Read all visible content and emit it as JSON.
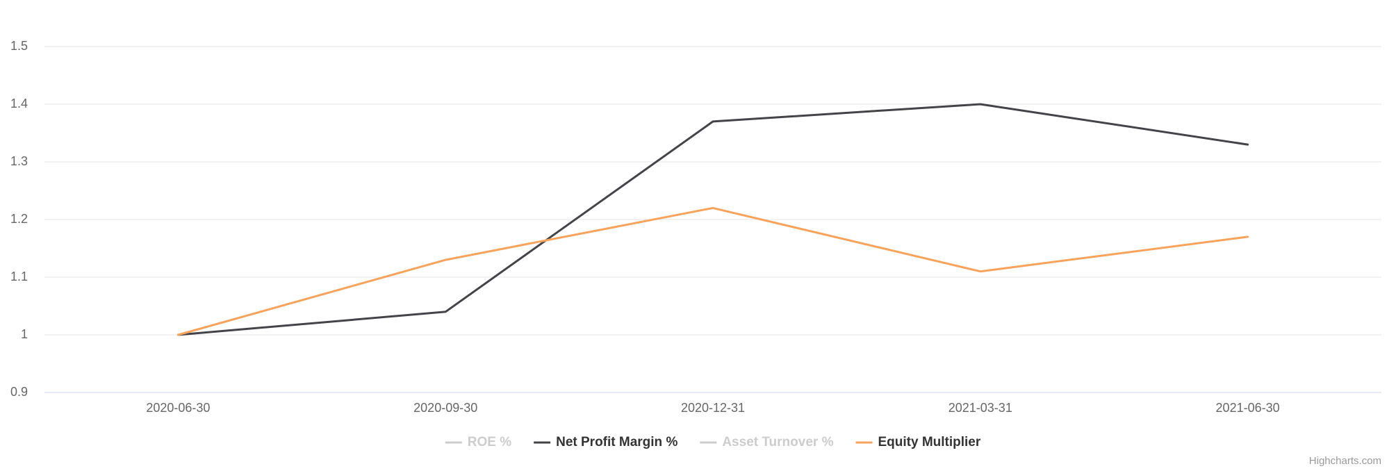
{
  "chart_data": {
    "type": "line",
    "categories": [
      "2020-06-30",
      "2020-09-30",
      "2020-12-31",
      "2021-03-31",
      "2021-06-30"
    ],
    "series": [
      {
        "name": "ROE %",
        "color": "#cccccc",
        "visible": false,
        "values": [
          null,
          null,
          null,
          null,
          null
        ]
      },
      {
        "name": "Net Profit Margin %",
        "color": "#434348",
        "visible": true,
        "values": [
          1.0,
          1.04,
          1.37,
          1.4,
          1.33
        ]
      },
      {
        "name": "Asset Turnover %",
        "color": "#cccccc",
        "visible": false,
        "values": [
          null,
          null,
          null,
          null,
          null
        ]
      },
      {
        "name": "Equity Multiplier",
        "color": "#f7a35c",
        "visible": true,
        "values": [
          1.0,
          1.13,
          1.22,
          1.11,
          1.17
        ]
      }
    ],
    "ylim": [
      0.9,
      1.5
    ],
    "yticks": [
      0.9,
      1,
      1.1,
      1.2,
      1.3,
      1.4,
      1.5
    ],
    "grid": true,
    "legend": "bottom",
    "credit": "Highcharts.com"
  }
}
